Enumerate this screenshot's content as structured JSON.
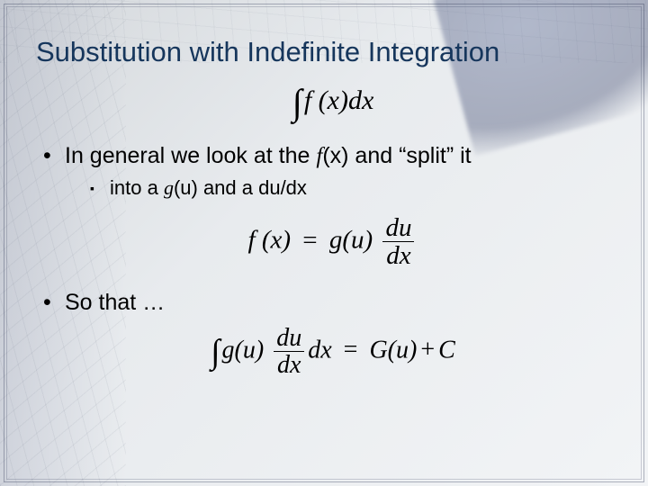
{
  "title": "Substitution with Indefinite Integration",
  "formula_top": {
    "type": "integral",
    "integrand": "f (x)",
    "dx": "dx",
    "font_family": "Times New Roman",
    "font_size_pt": 22,
    "color": "#000000"
  },
  "bullets": [
    {
      "prefix": "In general we look at the ",
      "ital1": "f",
      "mid1": "(x) and “split” it",
      "sub": {
        "prefix": "into a ",
        "ital1": "g",
        "mid1": "(u) and a du/dx"
      }
    },
    {
      "prefix": "So that …"
    }
  ],
  "formula_mid": {
    "lhs": "f (x)",
    "eq": "=",
    "g": "g(u)",
    "frac_num": "du",
    "frac_den": "dx",
    "font_size_pt": 21
  },
  "formula_bottom": {
    "int": "∫",
    "g": "g(u)",
    "frac_num": "du",
    "frac_den": "dx",
    "dx": "dx",
    "eq": "=",
    "G": "G(u)",
    "plus": "+",
    "C": "C",
    "font_size_pt": 20
  },
  "colors": {
    "title": "#16365c",
    "body_text": "#000000",
    "background_top": "#d4d8dc",
    "background_bottom": "#f2f4f6",
    "frame": "rgba(40,50,80,0.35)"
  },
  "typography": {
    "title_fontsize_pt": 23,
    "bullet_fontsize_pt": 19,
    "subbullet_fontsize_pt": 16,
    "title_font": "Arial",
    "formula_font": "Times New Roman"
  }
}
